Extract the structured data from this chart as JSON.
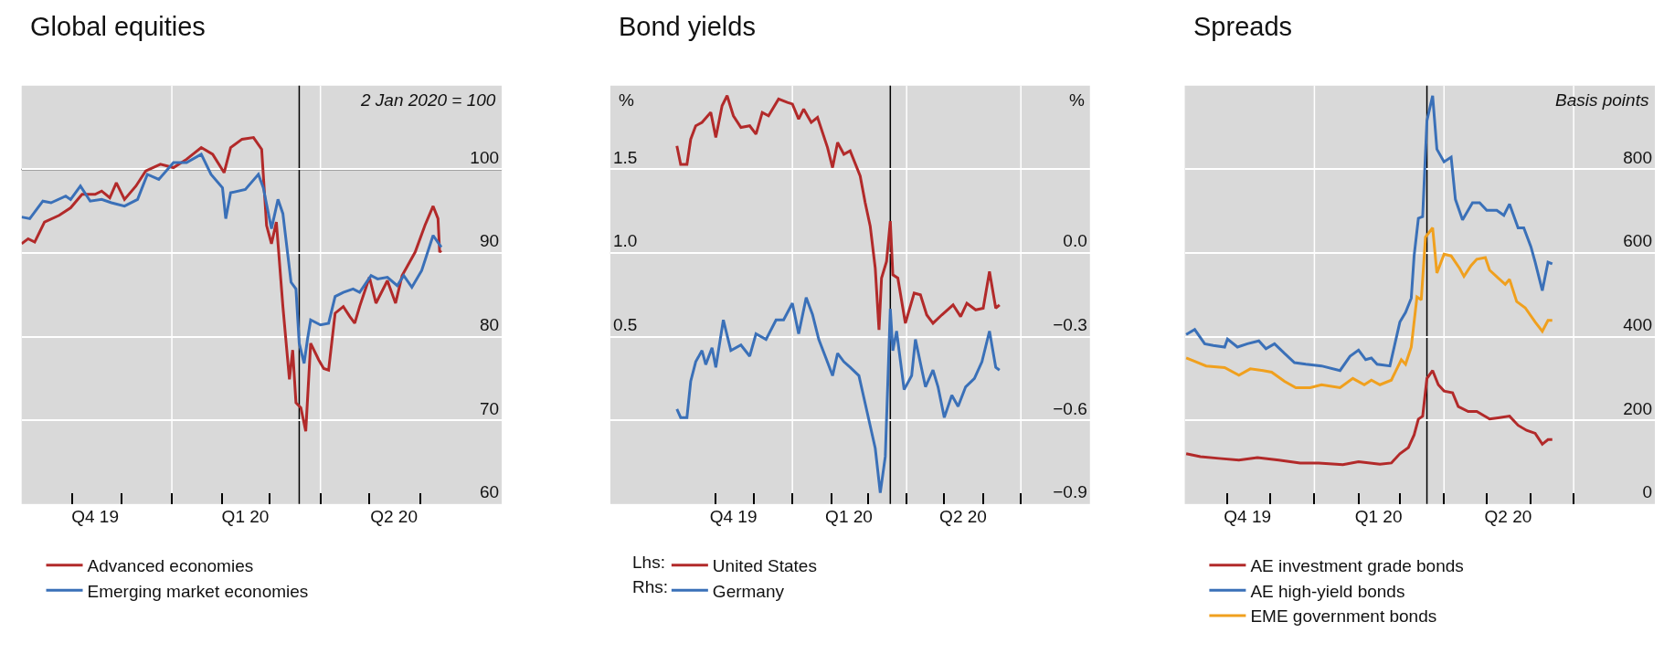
{
  "chart_data": [
    {
      "type": "line",
      "title": "Global equities",
      "ylabel": "2 Jan 2020 = 100",
      "xlim": [
        "2019-10-01",
        "2020-07-21"
      ],
      "ylim": [
        60,
        110
      ],
      "yticks": [
        60,
        70,
        80,
        90,
        100
      ],
      "xticks": [
        {
          "value": "2019-11-01",
          "label": null
        },
        {
          "value": "2019-12-01",
          "label": null
        },
        {
          "value": "2020-01-01",
          "label": null
        },
        {
          "value": "2020-02-01",
          "label": null
        },
        {
          "value": "2020-03-01",
          "label": null
        },
        {
          "value": "2020-04-01",
          "label": null
        },
        {
          "value": "2020-05-01",
          "label": null
        },
        {
          "value": "2020-06-01",
          "label": null
        },
        {
          "value": "2019-11-15",
          "label": "Q4 19"
        },
        {
          "value": "2020-02-15",
          "label": "Q1 20"
        },
        {
          "value": "2020-05-16",
          "label": "Q2 20"
        }
      ],
      "grid": true,
      "legend": "bottom left",
      "ref_lines": [
        {
          "axis": "y",
          "value": 100,
          "color": "#000000"
        },
        {
          "axis": "x",
          "value": "2020-03-19",
          "color": "#000000"
        }
      ],
      "series": [
        {
          "name": "Advanced economies",
          "color": "#b22a2a",
          "x": [
            "2019-10-01",
            "2019-10-05",
            "2019-10-09",
            "2019-10-15",
            "2019-10-24",
            "2019-10-31",
            "2019-11-07",
            "2019-11-15",
            "2019-11-19",
            "2019-11-24",
            "2019-11-28",
            "2019-12-03",
            "2019-12-10",
            "2019-12-16",
            "2019-12-25",
            "2020-01-02",
            "2020-01-10",
            "2020-01-19",
            "2020-01-26",
            "2020-02-02",
            "2020-02-06",
            "2020-02-13",
            "2020-02-20",
            "2020-02-25",
            "2020-02-28",
            "2020-03-02",
            "2020-03-05",
            "2020-03-09",
            "2020-03-13",
            "2020-03-15",
            "2020-03-17",
            "2020-03-20",
            "2020-03-23",
            "2020-03-26",
            "2020-03-31",
            "2020-04-03",
            "2020-04-06",
            "2020-04-10",
            "2020-04-15",
            "2020-04-19",
            "2020-04-22",
            "2020-04-25",
            "2020-05-01",
            "2020-05-05",
            "2020-05-12",
            "2020-05-17",
            "2020-05-21",
            "2020-05-29",
            "2020-06-04",
            "2020-06-09",
            "2020-06-12",
            "2020-06-13",
            "2020-06-14"
          ],
          "values": [
            91.1,
            91.7,
            91.3,
            93.7,
            94.5,
            95.4,
            97.0,
            97.0,
            97.4,
            96.6,
            98.4,
            96.4,
            98.0,
            99.8,
            100.6,
            100.2,
            101.2,
            102.6,
            101.8,
            99.6,
            102.6,
            103.6,
            103.8,
            102.4,
            93.3,
            91.1,
            93.7,
            83.6,
            74.9,
            78.4,
            72.1,
            71.5,
            68.7,
            79.2,
            77.2,
            76.2,
            76.0,
            82.8,
            83.6,
            82.4,
            81.6,
            83.6,
            87.1,
            84.0,
            86.7,
            84.0,
            87.3,
            90.1,
            93.3,
            95.6,
            94.1,
            90.1,
            90.3
          ]
        },
        {
          "name": "Emerging market economies",
          "color": "#3a70b8",
          "x": [
            "2019-10-01",
            "2019-10-06",
            "2019-10-14",
            "2019-10-19",
            "2019-10-28",
            "2019-10-31",
            "2019-11-06",
            "2019-11-12",
            "2019-11-19",
            "2019-11-25",
            "2019-12-03",
            "2019-12-11",
            "2019-12-17",
            "2019-12-24",
            "2020-01-02",
            "2020-01-10",
            "2020-01-19",
            "2020-01-25",
            "2020-02-01",
            "2020-02-03",
            "2020-02-06",
            "2020-02-15",
            "2020-02-23",
            "2020-02-26",
            "2020-03-02",
            "2020-03-06",
            "2020-03-09",
            "2020-03-14",
            "2020-03-17",
            "2020-03-19",
            "2020-03-22",
            "2020-03-24",
            "2020-03-26",
            "2020-04-01",
            "2020-04-06",
            "2020-04-10",
            "2020-04-15",
            "2020-04-21",
            "2020-04-25",
            "2020-05-02",
            "2020-05-06",
            "2020-05-12",
            "2020-05-18",
            "2020-05-22",
            "2020-05-27",
            "2020-06-02",
            "2020-06-09",
            "2020-06-14"
          ],
          "values": [
            94.3,
            94.1,
            96.2,
            96.0,
            96.8,
            96.4,
            98.0,
            96.2,
            96.4,
            96.0,
            95.6,
            96.4,
            99.4,
            98.8,
            100.8,
            100.8,
            101.8,
            99.4,
            97.8,
            94.1,
            97.2,
            97.6,
            99.4,
            97.8,
            92.9,
            96.4,
            94.7,
            86.5,
            85.7,
            79.2,
            76.8,
            79.6,
            82.0,
            81.4,
            81.6,
            84.8,
            85.3,
            85.7,
            85.3,
            87.3,
            86.9,
            87.1,
            86.1,
            87.3,
            85.9,
            87.9,
            92.1,
            90.7
          ]
        }
      ]
    },
    {
      "type": "line",
      "title": "Bond yields",
      "ylabel": "%",
      "y2label": "%",
      "annotations": [
        "Lhs:",
        "Rhs:"
      ],
      "xlim": [
        "2019-08-09",
        "2020-08-25"
      ],
      "ylim": [
        -0.5,
        2.0
      ],
      "yticks": [
        {
          "value": 0.5,
          "label": "0.5"
        },
        {
          "value": 1.0,
          "label": "1.0"
        },
        {
          "value": 1.5,
          "label": "1.5"
        }
      ],
      "y2lim": [
        -0.9,
        0.6
      ],
      "y2ticks": [
        {
          "value": -0.9,
          "label": "−0.9"
        },
        {
          "value": -0.6,
          "label": "−0.6"
        },
        {
          "value": -0.3,
          "label": "−0.3"
        },
        {
          "value": 0.0,
          "label": "0.0"
        }
      ],
      "xticks": [
        {
          "value": "2019-11-01",
          "label": null
        },
        {
          "value": "2019-12-01",
          "label": null
        },
        {
          "value": "2020-01-01",
          "label": null
        },
        {
          "value": "2020-02-01",
          "label": null
        },
        {
          "value": "2020-03-01",
          "label": null
        },
        {
          "value": "2020-04-01",
          "label": null
        },
        {
          "value": "2020-05-01",
          "label": null
        },
        {
          "value": "2020-06-01",
          "label": null
        },
        {
          "value": "2020-07-01",
          "label": null
        },
        {
          "value": "2019-11-15",
          "label": "Q4 19"
        },
        {
          "value": "2020-02-15",
          "label": "Q1 20"
        },
        {
          "value": "2020-05-16",
          "label": "Q2 20"
        }
      ],
      "grid": true,
      "legend": "bottom left",
      "ref_lines": [
        {
          "axis": "y",
          "value": 1.0,
          "color": "#000000"
        },
        {
          "axis": "x",
          "value": "2020-03-19",
          "color": "#000000"
        }
      ],
      "series": [
        {
          "name": "United States",
          "color": "#b22a2a",
          "x": [
            "2019-10-01",
            "2019-10-04",
            "2019-10-09",
            "2019-10-12",
            "2019-10-16",
            "2019-10-21",
            "2019-10-28",
            "2019-11-01",
            "2019-11-06",
            "2019-11-10",
            "2019-11-15",
            "2019-11-21",
            "2019-11-28",
            "2019-12-03",
            "2019-12-08",
            "2019-12-13",
            "2019-12-21",
            "2019-12-28",
            "2020-01-01",
            "2020-01-06",
            "2020-01-10",
            "2020-01-16",
            "2020-01-21",
            "2020-01-29",
            "2020-02-02",
            "2020-02-06",
            "2020-02-11",
            "2020-02-16",
            "2020-02-24",
            "2020-02-28",
            "2020-03-03",
            "2020-03-07",
            "2020-03-10",
            "2020-03-12",
            "2020-03-16",
            "2020-03-19",
            "2020-03-21",
            "2020-03-25",
            "2020-03-31",
            "2020-04-07",
            "2020-04-12",
            "2020-04-17",
            "2020-04-22",
            "2020-04-29",
            "2020-05-08",
            "2020-05-14",
            "2020-05-19",
            "2020-05-26",
            "2020-06-01",
            "2020-06-06",
            "2020-06-11",
            "2020-06-14"
          ],
          "values": [
            1.64,
            1.53,
            1.53,
            1.68,
            1.76,
            1.78,
            1.84,
            1.69,
            1.88,
            1.94,
            1.82,
            1.75,
            1.76,
            1.71,
            1.84,
            1.82,
            1.92,
            1.9,
            1.89,
            1.8,
            1.86,
            1.78,
            1.81,
            1.63,
            1.51,
            1.66,
            1.59,
            1.61,
            1.46,
            1.3,
            1.16,
            0.91,
            0.54,
            0.85,
            0.95,
            1.19,
            0.87,
            0.85,
            0.58,
            0.76,
            0.75,
            0.63,
            0.58,
            0.63,
            0.69,
            0.62,
            0.7,
            0.66,
            0.67,
            0.89,
            0.67,
            0.69
          ]
        },
        {
          "name": "Germany",
          "color": "#3a70b8",
          "axis": "y2",
          "x": [
            "2019-10-01",
            "2019-10-04",
            "2019-10-09",
            "2019-10-12",
            "2019-10-16",
            "2019-10-21",
            "2019-10-24",
            "2019-10-29",
            "2019-11-01",
            "2019-11-07",
            "2019-11-13",
            "2019-11-21",
            "2019-11-28",
            "2019-12-03",
            "2019-12-11",
            "2019-12-19",
            "2019-12-25",
            "2020-01-01",
            "2020-01-06",
            "2020-01-12",
            "2020-01-17",
            "2020-01-22",
            "2020-01-28",
            "2020-02-02",
            "2020-02-06",
            "2020-02-11",
            "2020-02-16",
            "2020-02-23",
            "2020-02-27",
            "2020-03-03",
            "2020-03-07",
            "2020-03-11",
            "2020-03-15",
            "2020-03-19",
            "2020-03-21",
            "2020-03-24",
            "2020-03-30",
            "2020-04-05",
            "2020-04-08",
            "2020-04-16",
            "2020-04-22",
            "2020-04-26",
            "2020-05-01",
            "2020-05-07",
            "2020-05-12",
            "2020-05-18",
            "2020-05-25",
            "2020-05-31",
            "2020-06-06",
            "2020-06-11",
            "2020-06-14"
          ],
          "values": [
            -0.56,
            -0.59,
            -0.59,
            -0.46,
            -0.39,
            -0.35,
            -0.4,
            -0.34,
            -0.41,
            -0.24,
            -0.35,
            -0.33,
            -0.37,
            -0.29,
            -0.31,
            -0.24,
            -0.24,
            -0.18,
            -0.29,
            -0.16,
            -0.22,
            -0.31,
            -0.38,
            -0.44,
            -0.36,
            -0.39,
            -0.41,
            -0.44,
            -0.52,
            -0.62,
            -0.7,
            -0.86,
            -0.73,
            -0.2,
            -0.35,
            -0.28,
            -0.49,
            -0.44,
            -0.31,
            -0.48,
            -0.42,
            -0.48,
            -0.59,
            -0.51,
            -0.55,
            -0.48,
            -0.45,
            -0.39,
            -0.28,
            -0.41,
            -0.42
          ]
        }
      ]
    },
    {
      "type": "line",
      "title": "Spreads",
      "ylabel": "Basis points",
      "xlim": [
        "2019-10-02",
        "2020-08-27"
      ],
      "ylim": [
        0,
        1000
      ],
      "yticks": [
        0,
        200,
        400,
        600,
        800
      ],
      "xticks": [
        {
          "value": "2019-11-01",
          "label": null
        },
        {
          "value": "2019-12-01",
          "label": null
        },
        {
          "value": "2020-01-01",
          "label": null
        },
        {
          "value": "2020-02-01",
          "label": null
        },
        {
          "value": "2020-03-01",
          "label": null
        },
        {
          "value": "2020-04-01",
          "label": null
        },
        {
          "value": "2020-05-01",
          "label": null
        },
        {
          "value": "2020-06-01",
          "label": null
        },
        {
          "value": "2020-07-01",
          "label": null
        },
        {
          "value": "2019-11-15",
          "label": "Q4 19"
        },
        {
          "value": "2020-02-15",
          "label": "Q1 20"
        },
        {
          "value": "2020-05-16",
          "label": "Q2 20"
        }
      ],
      "grid": true,
      "legend": "bottom left",
      "ref_lines": [
        {
          "axis": "x",
          "value": "2020-03-20",
          "color": "#000000"
        }
      ],
      "series": [
        {
          "name": "AE investment grade bonds",
          "color": "#b22a2a",
          "x": [
            "2019-10-03",
            "2019-10-13",
            "2019-10-26",
            "2019-11-09",
            "2019-11-22",
            "2019-12-07",
            "2019-12-22",
            "2020-01-04",
            "2020-01-21",
            "2020-02-01",
            "2020-02-16",
            "2020-02-24",
            "2020-03-01",
            "2020-03-07",
            "2020-03-11",
            "2020-03-14",
            "2020-03-17",
            "2020-03-20",
            "2020-03-24",
            "2020-03-28",
            "2020-04-01",
            "2020-04-07",
            "2020-04-11",
            "2020-04-18",
            "2020-04-24",
            "2020-05-03",
            "2020-05-09",
            "2020-05-17",
            "2020-05-23",
            "2020-05-29",
            "2020-06-04",
            "2020-06-09",
            "2020-06-13",
            "2020-06-16"
          ],
          "values": [
            120,
            113,
            109,
            105,
            111,
            105,
            98,
            98,
            94,
            101,
            95,
            98,
            120,
            135,
            165,
            203,
            210,
            300,
            319,
            285,
            270,
            266,
            233,
            221,
            221,
            203,
            206,
            210,
            188,
            176,
            169,
            143,
            154,
            154
          ]
        },
        {
          "name": "AE high-yield bonds",
          "color": "#3a70b8",
          "x": [
            "2019-10-03",
            "2019-10-09",
            "2019-10-16",
            "2019-10-22",
            "2019-10-30",
            "2019-11-01",
            "2019-11-08",
            "2019-11-15",
            "2019-11-23",
            "2019-11-28",
            "2019-12-04",
            "2019-12-11",
            "2019-12-18",
            "2019-12-26",
            "2020-01-06",
            "2020-01-19",
            "2020-01-26",
            "2020-02-01",
            "2020-02-06",
            "2020-02-10",
            "2020-02-14",
            "2020-02-23",
            "2020-03-01",
            "2020-03-05",
            "2020-03-09",
            "2020-03-11",
            "2020-03-14",
            "2020-03-17",
            "2020-03-20",
            "2020-03-24",
            "2020-03-27",
            "2020-04-01",
            "2020-04-06",
            "2020-04-09",
            "2020-04-14",
            "2020-04-21",
            "2020-04-26",
            "2020-05-01",
            "2020-05-08",
            "2020-05-13",
            "2020-05-17",
            "2020-05-23",
            "2020-05-27",
            "2020-06-01",
            "2020-06-04",
            "2020-06-09",
            "2020-06-13",
            "2020-06-16"
          ],
          "values": [
            405,
            417,
            383,
            379,
            375,
            394,
            375,
            383,
            390,
            371,
            383,
            360,
            338,
            334,
            330,
            319,
            353,
            368,
            345,
            349,
            334,
            330,
            435,
            458,
            492,
            593,
            683,
            687,
            916,
            976,
            848,
            818,
            829,
            728,
            679,
            720,
            720,
            702,
            702,
            690,
            717,
            660,
            660,
            615,
            578,
            510,
            578,
            574
          ]
        },
        {
          "name": "EME government bonds",
          "color": "#f0a01e",
          "x": [
            "2019-10-03",
            "2019-10-09",
            "2019-10-17",
            "2019-10-30",
            "2019-11-09",
            "2019-11-17",
            "2019-11-26",
            "2019-12-02",
            "2019-12-11",
            "2019-12-19",
            "2019-12-29",
            "2020-01-06",
            "2020-01-19",
            "2020-01-28",
            "2020-02-05",
            "2020-02-10",
            "2020-02-16",
            "2020-02-24",
            "2020-03-02",
            "2020-03-05",
            "2020-03-09",
            "2020-03-13",
            "2020-03-16",
            "2020-03-19",
            "2020-03-24",
            "2020-03-27",
            "2020-04-01",
            "2020-04-06",
            "2020-04-12",
            "2020-04-15",
            "2020-04-20",
            "2020-04-24",
            "2020-04-30",
            "2020-05-03",
            "2020-05-09",
            "2020-05-14",
            "2020-05-17",
            "2020-05-22",
            "2020-05-28",
            "2020-06-04",
            "2020-06-09",
            "2020-06-13",
            "2020-06-16"
          ],
          "values": [
            349,
            341,
            330,
            326,
            308,
            323,
            319,
            315,
            293,
            278,
            278,
            285,
            278,
            300,
            285,
            296,
            285,
            296,
            345,
            334,
            375,
            495,
            488,
            638,
            660,
            552,
            597,
            593,
            563,
            544,
            570,
            585,
            589,
            559,
            540,
            525,
            537,
            484,
            469,
            435,
            413,
            439,
            439
          ]
        }
      ]
    }
  ]
}
